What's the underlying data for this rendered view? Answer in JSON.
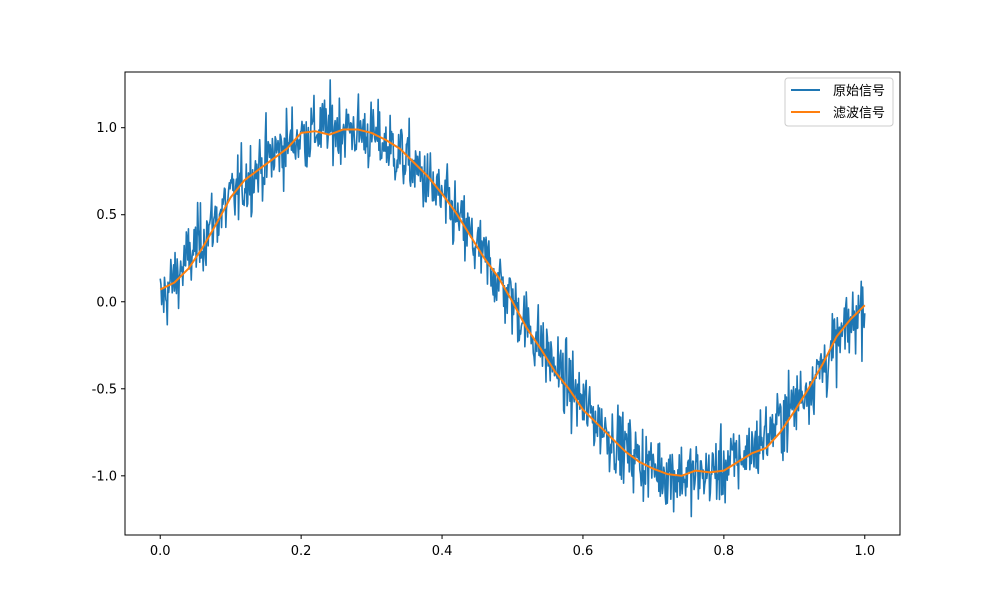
{
  "chart_data": {
    "type": "line",
    "title": "",
    "xlabel": "",
    "ylabel": "",
    "xlim": [
      -0.05,
      1.05
    ],
    "ylim": [
      -1.34,
      1.32
    ],
    "xticks": [
      0.0,
      0.2,
      0.4,
      0.6,
      0.8,
      1.0
    ],
    "xtick_labels": [
      "0.0",
      "0.2",
      "0.4",
      "0.6",
      "0.8",
      "1.0"
    ],
    "yticks": [
      -1.0,
      -0.5,
      0.0,
      0.5,
      1.0
    ],
    "ytick_labels": [
      "-1.0",
      "-0.5",
      "0.0",
      "0.5",
      "1.0"
    ],
    "grid": false,
    "legend_position": "top-right",
    "series": [
      {
        "name": "原始信号",
        "color": "#1f77b4",
        "function": "sin(2*pi*x) + noise",
        "noise_amplitude": 0.1,
        "x_range": [
          0.0,
          1.0
        ],
        "num_points": 1000
      },
      {
        "name": "滤波信号",
        "color": "#ff7f0e",
        "x": [
          0.0,
          0.02,
          0.04,
          0.06,
          0.08,
          0.1,
          0.12,
          0.14,
          0.16,
          0.18,
          0.2,
          0.22,
          0.24,
          0.26,
          0.28,
          0.3,
          0.32,
          0.34,
          0.36,
          0.38,
          0.4,
          0.42,
          0.44,
          0.46,
          0.48,
          0.5,
          0.52,
          0.54,
          0.56,
          0.58,
          0.6,
          0.62,
          0.64,
          0.66,
          0.68,
          0.7,
          0.72,
          0.74,
          0.76,
          0.78,
          0.8,
          0.82,
          0.84,
          0.86,
          0.88,
          0.9,
          0.92,
          0.94,
          0.96,
          0.98,
          1.0
        ],
        "values": [
          0.07,
          0.11,
          0.19,
          0.31,
          0.45,
          0.6,
          0.7,
          0.76,
          0.82,
          0.88,
          0.97,
          0.98,
          0.96,
          0.99,
          0.99,
          0.97,
          0.93,
          0.88,
          0.8,
          0.72,
          0.62,
          0.51,
          0.38,
          0.25,
          0.14,
          0.0,
          -0.15,
          -0.27,
          -0.4,
          -0.5,
          -0.62,
          -0.7,
          -0.78,
          -0.86,
          -0.92,
          -0.96,
          -0.99,
          -1.0,
          -0.97,
          -0.98,
          -0.97,
          -0.92,
          -0.87,
          -0.84,
          -0.75,
          -0.63,
          -0.5,
          -0.36,
          -0.2,
          -0.1,
          -0.02
        ]
      }
    ]
  }
}
